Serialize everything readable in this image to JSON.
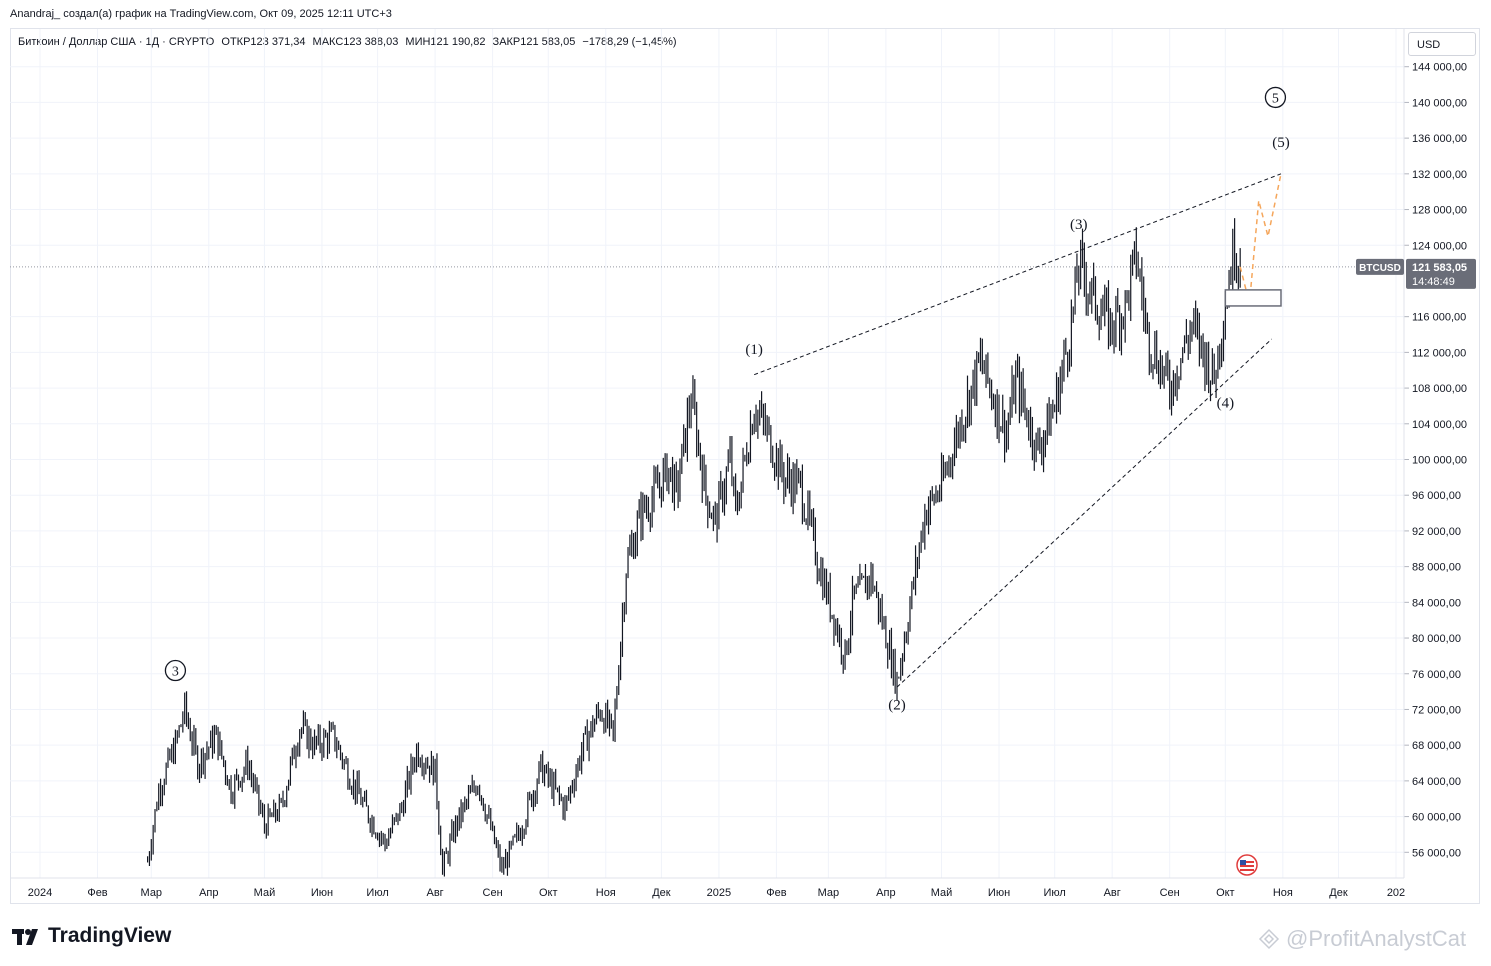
{
  "header": {
    "attribution": "Anandraj_ создал(а) график на TradingView.com, Окт 09, 2025 12:11 UTC+3"
  },
  "legend": {
    "symbol": "Биткоин / Доллар США · 1Д · CRYPTO",
    "open": "ОТКР123 371,34",
    "high": "МАКС123 388,03",
    "low": "МИН121 190,82",
    "close": "ЗАКР121 583,05",
    "change": "−1788,29 (−1,45%)"
  },
  "currency": "USD",
  "price_tag": {
    "symbol": "BTCUSD",
    "price": "121 583,05",
    "countdown": "14:48:49"
  },
  "footer": {
    "logo_text": "TradingView",
    "watermark": "@ProfitAnalystCat"
  },
  "colors": {
    "candles": "#131722",
    "projection": "#f5a65b",
    "price_tag_bg": "#6a6d78",
    "grid": "#f0f3fa"
  },
  "icons": {
    "flag": "us-flag-icon",
    "logo": "tradingview-logo-icon",
    "watermark": "watermark-icon"
  },
  "chart_data": {
    "type": "line",
    "series": [
      {
        "name": "BTCUSD",
        "x": [
          "2024-02-28",
          "2024-03-05",
          "2024-03-14",
          "2024-03-19",
          "2024-03-26",
          "2024-04-05",
          "2024-04-13",
          "2024-04-22",
          "2024-05-01",
          "2024-05-10",
          "2024-05-20",
          "2024-05-28",
          "2024-06-07",
          "2024-06-15",
          "2024-06-24",
          "2024-07-05",
          "2024-07-14",
          "2024-07-22",
          "2024-08-01",
          "2024-08-05",
          "2024-08-12",
          "2024-08-24",
          "2024-09-06",
          "2024-09-16",
          "2024-09-27",
          "2024-10-10",
          "2024-10-20",
          "2024-10-29",
          "2024-11-05",
          "2024-11-12",
          "2024-11-20",
          "2024-11-27",
          "2024-12-05",
          "2024-12-09",
          "2024-12-17",
          "2024-12-25",
          "2024-12-30",
          "2025-01-07",
          "2025-01-10",
          "2025-01-20",
          "2025-01-27",
          "2025-02-05",
          "2025-02-14",
          "2025-02-24",
          "2025-03-10",
          "2025-03-14",
          "2025-03-24",
          "2025-03-30",
          "2025-04-07",
          "2025-04-15",
          "2025-04-22",
          "2025-05-01",
          "2025-05-08",
          "2025-05-22",
          "2025-06-05",
          "2025-06-10",
          "2025-06-22",
          "2025-07-01",
          "2025-07-10",
          "2025-07-14",
          "2025-07-22",
          "2025-07-31",
          "2025-08-08",
          "2025-08-14",
          "2025-08-20",
          "2025-09-01",
          "2025-09-06",
          "2025-09-13",
          "2025-09-25",
          "2025-10-01",
          "2025-10-06",
          "2025-10-09"
        ],
        "values": [
          55000,
          63000,
          68000,
          72000,
          66000,
          69000,
          63000,
          66000,
          59000,
          61000,
          70000,
          68000,
          69000,
          65000,
          61000,
          57000,
          61000,
          67500,
          65000,
          54000,
          59000,
          64000,
          54000,
          58500,
          65500,
          61000,
          68000,
          72000,
          69000,
          88000,
          94000,
          96000,
          99000,
          96000,
          107000,
          96000,
          93000,
          100000,
          94000,
          106000,
          103000,
          98000,
          97000,
          88000,
          78000,
          84000,
          87000,
          82000,
          75000,
          85000,
          94000,
          97000,
          102000,
          111000,
          103000,
          109000,
          101000,
          106000,
          115000,
          122000,
          118000,
          115000,
          117000,
          123000,
          114000,
          108000,
          111000,
          115000,
          109000,
          118000,
          124000,
          121583
        ]
      },
      {
        "name": "projection",
        "x": [
          "2025-10-09",
          "2025-10-14",
          "2025-10-19",
          "2025-10-24",
          "2025-10-31"
        ],
        "values": [
          121583,
          117500,
          129000,
          125000,
          132000
        ]
      }
    ],
    "xtick_labels": [
      "2024",
      "Фев",
      "Мар",
      "Апр",
      "Май",
      "Июн",
      "Июл",
      "Авг",
      "Сен",
      "Окт",
      "Ноя",
      "Дек",
      "2025",
      "Фев",
      "Мар",
      "Апр",
      "Май",
      "Июн",
      "Июл",
      "Авг",
      "Сен",
      "Окт",
      "Ноя",
      "Дек",
      "202"
    ],
    "ytick_labels": [
      "144 000,00",
      "140 000,00",
      "136 000,00",
      "132 000,00",
      "128 000,00",
      "124 000,00",
      "116 000,00",
      "112 000,00",
      "108 000,00",
      "104 000,00",
      "100 000,00",
      "96 000,00",
      "92 000,00",
      "88 000,00",
      "84 000,00",
      "80 000,00",
      "76 000,00",
      "72 000,00",
      "68 000,00",
      "64 000,00",
      "60 000,00",
      "56 000,00"
    ],
    "ylim": [
      52000,
      148000
    ],
    "grid": true,
    "annotations": [
      {
        "label": "3",
        "circled": true,
        "date": "2024-03-14",
        "price": 75800
      },
      {
        "label": "(1)",
        "circled": false,
        "date": "2025-01-20",
        "price": 111800
      },
      {
        "label": "(2)",
        "circled": false,
        "date": "2025-04-07",
        "price": 72000
      },
      {
        "label": "(3)",
        "circled": false,
        "date": "2025-07-14",
        "price": 125800
      },
      {
        "label": "(4)",
        "circled": false,
        "date": "2025-10-01",
        "price": 105800
      },
      {
        "label": "(5)",
        "circled": false,
        "date": "2025-10-31",
        "price": 135000
      },
      {
        "label": "5",
        "circled": true,
        "date": "2025-10-28",
        "price": 140000
      }
    ],
    "trendlines": [
      {
        "from": {
          "date": "2025-01-20",
          "price": 109500
        },
        "to": {
          "date": "2025-10-31",
          "price": 132000
        }
      },
      {
        "from": {
          "date": "2025-04-07",
          "price": 74500
        },
        "to": {
          "date": "2025-10-26",
          "price": 113500
        }
      }
    ],
    "zone": {
      "from_date": "2025-10-01",
      "to_date": "2025-10-31",
      "price_top": 119000,
      "price_bottom": 117200
    },
    "last_price": 121583.05
  }
}
